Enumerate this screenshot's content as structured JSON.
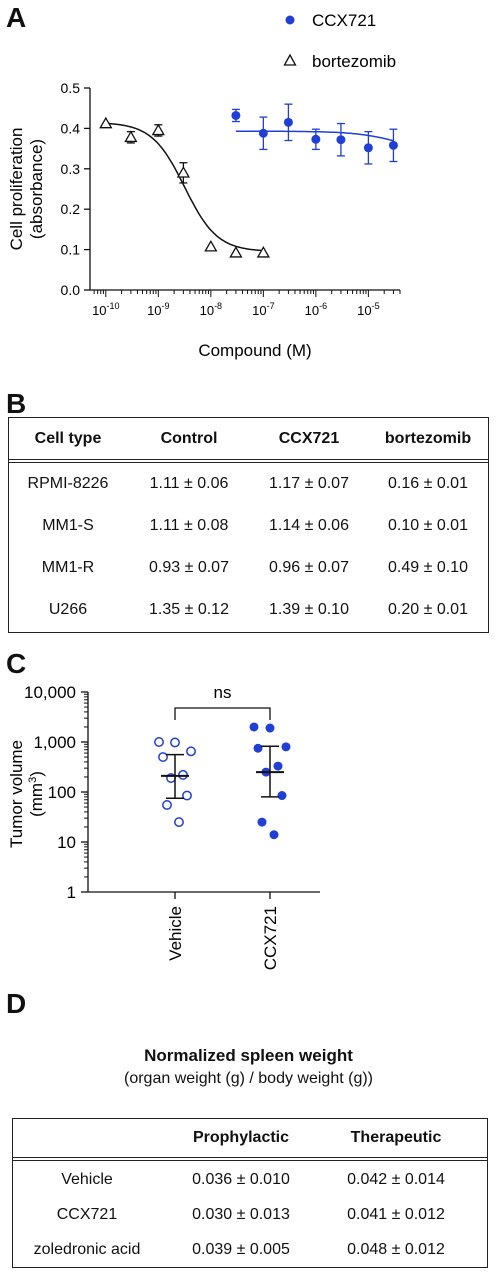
{
  "panels": {
    "a": "A",
    "b": "B",
    "c": "C",
    "d": "D"
  },
  "chart_data": [
    {
      "type": "scatter",
      "ylabel_line1": "Cell proliferation",
      "ylabel_line2": "(absorbance)",
      "xlabel": "Compound (M)",
      "xscale": "log",
      "xlim": [
        5e-11,
        4e-05
      ],
      "ylim": [
        0,
        0.5
      ],
      "yticks": [
        "0.0",
        "0.1",
        "0.2",
        "0.3",
        "0.4",
        "0.5"
      ],
      "xticks": [
        {
          "base": "10",
          "exp": "-10",
          "value": 1e-10
        },
        {
          "base": "10",
          "exp": "-9",
          "value": 1e-09
        },
        {
          "base": "10",
          "exp": "-8",
          "value": 1e-08
        },
        {
          "base": "10",
          "exp": "-7",
          "value": 1e-07
        },
        {
          "base": "10",
          "exp": "-6",
          "value": 1e-06
        },
        {
          "base": "10",
          "exp": "-5",
          "value": 1e-05
        }
      ],
      "legend_position": "top-right",
      "series": [
        {
          "name": "CCX721",
          "color": "#1f3fd6",
          "marker": "filled-circle",
          "points": [
            {
              "x": 3e-08,
              "y": 0.432,
              "err": 0.015
            },
            {
              "x": 1e-07,
              "y": 0.388,
              "err": 0.04
            },
            {
              "x": 3e-07,
              "y": 0.415,
              "err": 0.045
            },
            {
              "x": 1e-06,
              "y": 0.373,
              "err": 0.025
            },
            {
              "x": 3e-06,
              "y": 0.372,
              "err": 0.04
            },
            {
              "x": 1e-05,
              "y": 0.352,
              "err": 0.04
            },
            {
              "x": 3e-05,
              "y": 0.358,
              "err": 0.04
            }
          ],
          "fit": {
            "top": 0.393,
            "bottom": 0.33,
            "logec50": -4.3,
            "hill": 1
          }
        },
        {
          "name": "bortezomib",
          "color": "#111111",
          "marker": "open-triangle",
          "points": [
            {
              "x": 1e-10,
              "y": 0.412,
              "err": 0.0
            },
            {
              "x": 3e-10,
              "y": 0.378,
              "err": 0.014
            },
            {
              "x": 1e-09,
              "y": 0.395,
              "err": 0.014
            },
            {
              "x": 3e-09,
              "y": 0.29,
              "err": 0.025
            },
            {
              "x": 1e-08,
              "y": 0.107,
              "err": 0.0
            },
            {
              "x": 3e-08,
              "y": 0.092,
              "err": 0.0
            },
            {
              "x": 1e-07,
              "y": 0.092,
              "err": 0.0
            }
          ],
          "fit": {
            "top": 0.415,
            "bottom": 0.095,
            "logec50": -8.5,
            "hill": 1.4
          }
        }
      ]
    },
    {
      "type": "scatter",
      "ylabel_line1": "Tumor volume",
      "ylabel_line2_base": "(mm",
      "ylabel_line2_sup": "3",
      "ylabel_line2_end": ")",
      "yscale": "log",
      "ylim": [
        1,
        10000
      ],
      "yticks": [
        "1",
        "10",
        "100",
        "1,000",
        "10,000"
      ],
      "categories": [
        "Vehicle",
        "CCX721"
      ],
      "annotation": "ns",
      "series": [
        {
          "name": "Vehicle",
          "color": "#1f3fd6",
          "marker": "open-circle",
          "values": [
            1000,
            980,
            650,
            500,
            220,
            190,
            85,
            55,
            25
          ],
          "mean": 210,
          "lower": 75,
          "upper": 560
        },
        {
          "name": "CCX721",
          "color": "#1f3fd6",
          "marker": "filled-circle",
          "values": [
            2000,
            1900,
            800,
            750,
            330,
            250,
            85,
            25,
            14
          ],
          "mean": 250,
          "lower": 80,
          "upper": 820
        }
      ]
    }
  ],
  "table_b": {
    "headers": [
      "Cell type",
      "Control",
      "CCX721",
      "bortezomib"
    ],
    "rows": [
      [
        "RPMI-8226",
        "1.11 ± 0.06",
        "1.17 ± 0.07",
        "0.16 ± 0.01"
      ],
      [
        "MM1-S",
        "1.11 ± 0.08",
        "1.14 ± 0.06",
        "0.10 ± 0.01"
      ],
      [
        "MM1-R",
        "0.93 ± 0.07",
        "0.96 ± 0.07",
        "0.49 ± 0.10"
      ],
      [
        "U266",
        "1.35 ± 0.12",
        "1.39 ± 0.10",
        "0.20 ± 0.01"
      ]
    ]
  },
  "table_d": {
    "title": "Normalized spleen weight",
    "subtitle": "(organ weight (g) / body weight (g))",
    "headers": [
      "",
      "Prophylactic",
      "Therapeutic"
    ],
    "rows": [
      [
        "Vehicle",
        "0.036 ± 0.010",
        "0.042 ± 0.014"
      ],
      [
        "CCX721",
        "0.030 ± 0.013",
        "0.041 ± 0.012"
      ],
      [
        "zoledronic acid",
        "0.039 ± 0.005",
        "0.048 ± 0.012"
      ]
    ]
  }
}
